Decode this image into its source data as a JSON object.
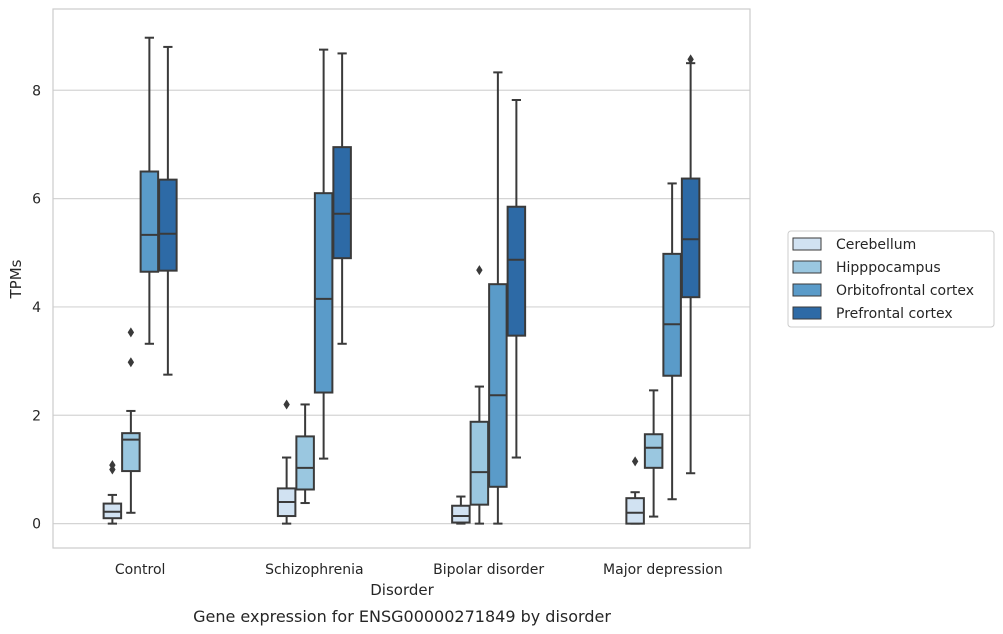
{
  "caption": "Gene expression for ENSG00000271849 by disorder",
  "chart_data": {
    "type": "boxplot",
    "xlabel": "Disorder",
    "ylabel": "TPMs",
    "ylim": [
      -0.45,
      9.5
    ],
    "yticks": [
      0,
      2,
      4,
      6,
      8
    ],
    "grid": "horizontal",
    "legend_position": "right",
    "categories": [
      "Control",
      "Schizophrenia",
      "Bipolar disorder",
      "Major depression"
    ],
    "series": [
      {
        "name": "Cerebellum",
        "color": "#d1e2f2",
        "boxes": [
          {
            "whisker_low": 0.0,
            "q1": 0.1,
            "median": 0.22,
            "q3": 0.37,
            "whisker_high": 0.53,
            "outliers": [
              1.0,
              1.08
            ]
          },
          {
            "whisker_low": 0.0,
            "q1": 0.14,
            "median": 0.4,
            "q3": 0.65,
            "whisker_high": 1.22,
            "outliers": [
              2.2
            ]
          },
          {
            "whisker_low": 0.0,
            "q1": 0.02,
            "median": 0.14,
            "q3": 0.33,
            "whisker_high": 0.5,
            "outliers": []
          },
          {
            "whisker_low": 0.0,
            "q1": 0.0,
            "median": 0.2,
            "q3": 0.47,
            "whisker_high": 0.58,
            "outliers": [
              1.15
            ]
          }
        ]
      },
      {
        "name": "Hipppocampus",
        "color": "#9ac7e0",
        "boxes": [
          {
            "whisker_low": 0.2,
            "q1": 0.97,
            "median": 1.55,
            "q3": 1.67,
            "whisker_high": 2.08,
            "outliers": [
              2.98,
              3.53
            ]
          },
          {
            "whisker_low": 0.38,
            "q1": 0.63,
            "median": 1.03,
            "q3": 1.61,
            "whisker_high": 2.2,
            "outliers": []
          },
          {
            "whisker_low": 0.0,
            "q1": 0.35,
            "median": 0.95,
            "q3": 1.88,
            "whisker_high": 2.53,
            "outliers": [
              4.68
            ]
          },
          {
            "whisker_low": 0.13,
            "q1": 1.03,
            "median": 1.4,
            "q3": 1.65,
            "whisker_high": 2.46,
            "outliers": []
          }
        ]
      },
      {
        "name": "Orbitofrontal cortex",
        "color": "#5a9bc9",
        "boxes": [
          {
            "whisker_low": 3.32,
            "q1": 4.65,
            "median": 5.33,
            "q3": 6.5,
            "whisker_high": 8.97,
            "outliers": []
          },
          {
            "whisker_low": 1.2,
            "q1": 2.42,
            "median": 4.15,
            "q3": 6.1,
            "whisker_high": 8.75,
            "outliers": []
          },
          {
            "whisker_low": 0.0,
            "q1": 0.68,
            "median": 2.37,
            "q3": 4.42,
            "whisker_high": 8.33,
            "outliers": []
          },
          {
            "whisker_low": 0.45,
            "q1": 2.73,
            "median": 3.68,
            "q3": 4.98,
            "whisker_high": 6.28,
            "outliers": []
          }
        ]
      },
      {
        "name": "Prefrontal cortex",
        "color": "#2d6aa6",
        "boxes": [
          {
            "whisker_low": 2.75,
            "q1": 4.67,
            "median": 5.35,
            "q3": 6.35,
            "whisker_high": 8.8,
            "outliers": []
          },
          {
            "whisker_low": 3.32,
            "q1": 4.9,
            "median": 5.72,
            "q3": 6.95,
            "whisker_high": 8.68,
            "outliers": []
          },
          {
            "whisker_low": 1.22,
            "q1": 3.47,
            "median": 4.87,
            "q3": 5.85,
            "whisker_high": 7.82,
            "outliers": []
          },
          {
            "whisker_low": 0.93,
            "q1": 4.18,
            "median": 5.25,
            "q3": 6.37,
            "whisker_high": 8.5,
            "outliers": [
              8.57
            ]
          }
        ]
      }
    ]
  }
}
